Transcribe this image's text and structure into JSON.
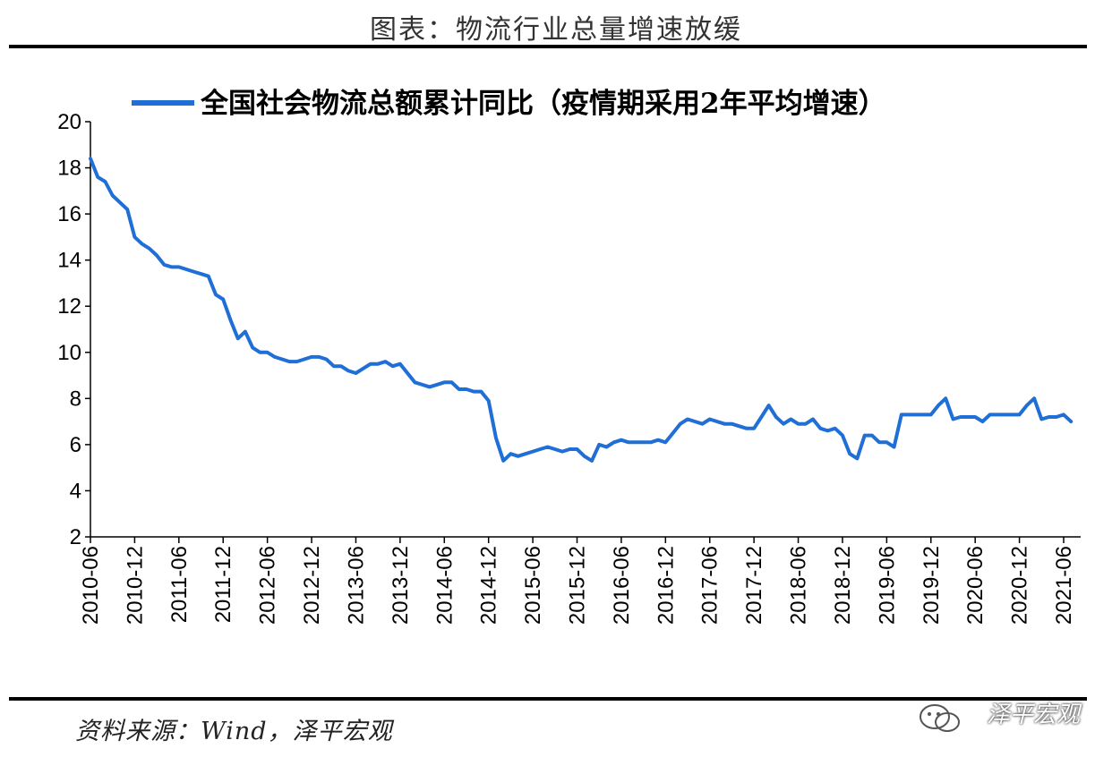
{
  "header": {
    "title": "图表：物流行业总量增速放缓"
  },
  "footer": {
    "source": "资料来源：Wind，泽平宏观",
    "watermark": "泽平宏观",
    "watermark_icon": "wechat-icon"
  },
  "colors": {
    "series": "#1F6FD6",
    "axis": "#000000",
    "rule": "#000000"
  },
  "chart_data": {
    "type": "line",
    "title": "",
    "xlabel": "",
    "ylabel": "",
    "ylim": [
      2,
      20
    ],
    "yticks": [
      2,
      4,
      6,
      8,
      10,
      12,
      14,
      16,
      18,
      20
    ],
    "xticks": [
      "2010-06",
      "2010-12",
      "2011-06",
      "2011-12",
      "2012-06",
      "2012-12",
      "2013-06",
      "2013-12",
      "2014-06",
      "2014-12",
      "2015-06",
      "2015-12",
      "2016-06",
      "2016-12",
      "2017-06",
      "2017-12",
      "2018-06",
      "2018-12",
      "2019-06",
      "2019-12",
      "2020-06",
      "2020-12",
      "2021-06"
    ],
    "grid": false,
    "legend_position": "top",
    "series": [
      {
        "name": "全国社会物流总额累计同比（疫情期采用2年平均增速）",
        "x": [
          "2010-06",
          "2010-07",
          "2010-08",
          "2010-09",
          "2010-10",
          "2010-11",
          "2010-12",
          "2011-01",
          "2011-02",
          "2011-03",
          "2011-04",
          "2011-05",
          "2011-06",
          "2011-07",
          "2011-08",
          "2011-09",
          "2011-10",
          "2011-11",
          "2011-12",
          "2012-01",
          "2012-02",
          "2012-03",
          "2012-04",
          "2012-05",
          "2012-06",
          "2012-07",
          "2012-08",
          "2012-09",
          "2012-10",
          "2012-11",
          "2012-12",
          "2013-01",
          "2013-02",
          "2013-03",
          "2013-04",
          "2013-05",
          "2013-06",
          "2013-07",
          "2013-08",
          "2013-09",
          "2013-10",
          "2013-11",
          "2013-12",
          "2014-01",
          "2014-02",
          "2014-03",
          "2014-04",
          "2014-05",
          "2014-06",
          "2014-07",
          "2014-08",
          "2014-09",
          "2014-10",
          "2014-11",
          "2014-12",
          "2015-01",
          "2015-02",
          "2015-03",
          "2015-04",
          "2015-05",
          "2015-06",
          "2015-07",
          "2015-08",
          "2015-09",
          "2015-10",
          "2015-11",
          "2015-12",
          "2016-01",
          "2016-02",
          "2016-03",
          "2016-04",
          "2016-05",
          "2016-06",
          "2016-07",
          "2016-08",
          "2016-09",
          "2016-10",
          "2016-11",
          "2016-12",
          "2017-01",
          "2017-02",
          "2017-03",
          "2017-04",
          "2017-05",
          "2017-06",
          "2017-07",
          "2017-08",
          "2017-09",
          "2017-10",
          "2017-11",
          "2017-12",
          "2018-01",
          "2018-02",
          "2018-03",
          "2018-04",
          "2018-05",
          "2018-06",
          "2018-07",
          "2018-08",
          "2018-09",
          "2018-10",
          "2018-11",
          "2018-12",
          "2019-01",
          "2019-02",
          "2019-03",
          "2019-04",
          "2019-05",
          "2019-06",
          "2019-07",
          "2019-08",
          "2019-09",
          "2019-10",
          "2019-11",
          "2019-12",
          "2020-01",
          "2020-02",
          "2020-03",
          "2020-04",
          "2020-05",
          "2020-06",
          "2020-07",
          "2020-08",
          "2020-09",
          "2020-10",
          "2020-11",
          "2020-12",
          "2021-01",
          "2021-02",
          "2021-03",
          "2021-04",
          "2021-05",
          "2021-06",
          "2021-07"
        ],
        "values": [
          18.4,
          17.6,
          17.4,
          16.8,
          16.5,
          16.2,
          15.0,
          14.7,
          14.5,
          14.2,
          13.8,
          13.7,
          13.7,
          13.6,
          13.5,
          13.4,
          13.3,
          12.5,
          12.3,
          11.4,
          10.6,
          10.9,
          10.2,
          10.0,
          10.0,
          9.8,
          9.7,
          9.6,
          9.6,
          9.7,
          9.8,
          9.8,
          9.7,
          9.4,
          9.4,
          9.2,
          9.1,
          9.3,
          9.5,
          9.5,
          9.6,
          9.4,
          9.5,
          9.1,
          8.7,
          8.6,
          8.5,
          8.6,
          8.7,
          8.7,
          8.4,
          8.4,
          8.3,
          8.3,
          7.9,
          6.3,
          5.3,
          5.6,
          5.5,
          5.6,
          5.7,
          5.8,
          5.9,
          5.8,
          5.7,
          5.8,
          5.8,
          5.5,
          5.3,
          6.0,
          5.9,
          6.1,
          6.2,
          6.1,
          6.1,
          6.1,
          6.1,
          6.2,
          6.1,
          6.5,
          6.9,
          7.1,
          7.0,
          6.9,
          7.1,
          7.0,
          6.9,
          6.9,
          6.8,
          6.7,
          6.7,
          7.2,
          7.7,
          7.2,
          6.9,
          7.1,
          6.9,
          6.9,
          7.1,
          6.7,
          6.6,
          6.7,
          6.4,
          5.6,
          5.4,
          6.4,
          6.4,
          6.1,
          6.1,
          5.9,
          7.3,
          7.3,
          7.3,
          7.3,
          7.3,
          7.7,
          8.0,
          7.1,
          7.2,
          7.2,
          7.2,
          7.0,
          7.3,
          7.3,
          7.3,
          7.3,
          7.3,
          7.7,
          8.0,
          7.1,
          7.2,
          7.2,
          7.3,
          7.0
        ]
      }
    ]
  }
}
